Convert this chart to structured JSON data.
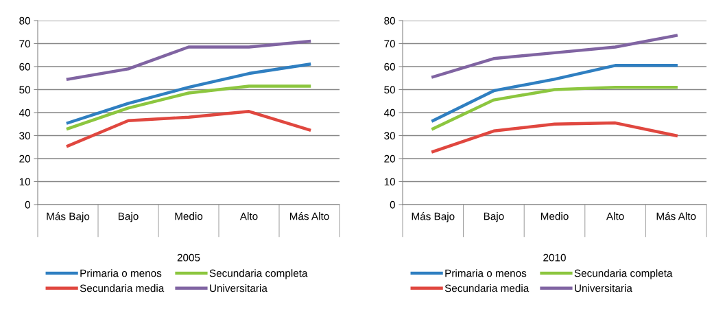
{
  "chart_data": [
    {
      "type": "line",
      "xlabel": "2005",
      "categories": [
        "Más Bajo",
        "Bajo",
        "Medio",
        "Alto",
        "Más Alto"
      ],
      "ylim": [
        0,
        80
      ],
      "yticks": [
        0,
        10,
        20,
        30,
        40,
        50,
        60,
        70,
        80
      ],
      "grid": "y",
      "legend": "bottom",
      "marker": "none",
      "line_style": "solid",
      "series": [
        {
          "name": "Primaria o menos",
          "color": "#2f7fc1",
          "values": [
            35.5,
            44,
            51,
            57,
            61
          ]
        },
        {
          "name": "Secundaria media",
          "color": "#e0473f",
          "values": [
            25.5,
            36.5,
            38,
            40.5,
            32.5
          ]
        },
        {
          "name": "Secundaria completa",
          "color": "#8cc63f",
          "values": [
            33,
            42,
            48.5,
            51.5,
            51.5
          ]
        },
        {
          "name": "Universitaria",
          "color": "#8064a2",
          "values": [
            54.5,
            59,
            68.5,
            68.5,
            71
          ]
        }
      ]
    },
    {
      "type": "line",
      "xlabel": "2010",
      "categories": [
        "Más Bajo",
        "Bajo",
        "Medio",
        "Alto",
        "Más Alto"
      ],
      "ylim": [
        0,
        80
      ],
      "yticks": [
        0,
        10,
        20,
        30,
        40,
        50,
        60,
        70,
        80
      ],
      "grid": "y",
      "legend": "bottom",
      "marker": "none",
      "line_style": "solid",
      "series": [
        {
          "name": "Primaria o menos",
          "color": "#2f7fc1",
          "values": [
            36.5,
            49.5,
            54.5,
            60.5,
            60.5
          ]
        },
        {
          "name": "Secundaria media",
          "color": "#e0473f",
          "values": [
            23,
            32,
            35,
            35.5,
            30
          ]
        },
        {
          "name": "Secundaria completa",
          "color": "#8cc63f",
          "values": [
            33,
            45.5,
            50,
            51,
            51
          ]
        },
        {
          "name": "Universitaria",
          "color": "#8064a2",
          "values": [
            55.5,
            63.5,
            66,
            68.5,
            73.5
          ]
        }
      ]
    }
  ]
}
